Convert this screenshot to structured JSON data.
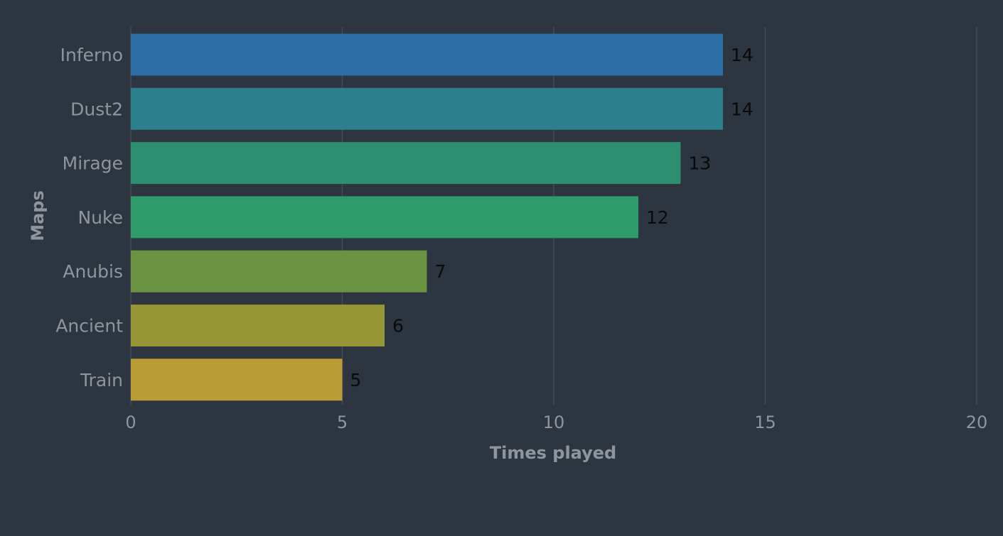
{
  "chart_data": {
    "type": "bar",
    "orientation": "horizontal",
    "categories": [
      "Inferno",
      "Dust2",
      "Mirage",
      "Nuke",
      "Anubis",
      "Ancient",
      "Train"
    ],
    "values": [
      14,
      14,
      13,
      12,
      7,
      6,
      5
    ],
    "colors": [
      "#2c6ea6",
      "#2c7f8c",
      "#2e8e71",
      "#2f9a6a",
      "#6b9442",
      "#979637",
      "#b99d34"
    ],
    "title": "",
    "xlabel": "Times played",
    "ylabel": "Maps",
    "xlim": [
      0,
      20
    ],
    "xticks": [
      0,
      5,
      10,
      15,
      20
    ],
    "grid": "vertical",
    "legend": "none",
    "background": "#2d3541"
  }
}
